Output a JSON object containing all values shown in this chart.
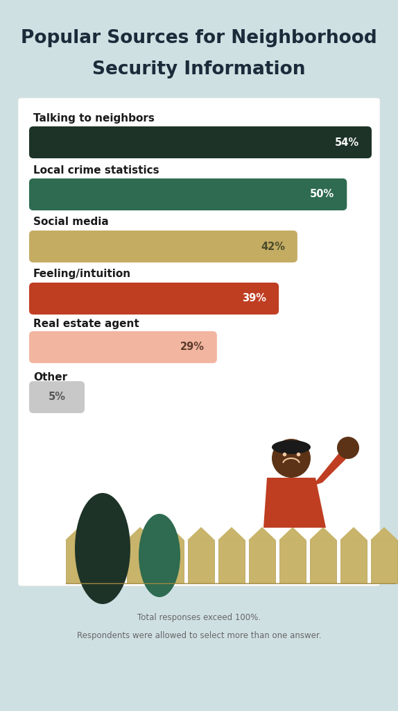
{
  "title_line1": "Popular Sources for Neighborhood",
  "title_line2": "Security Information",
  "title_color": "#1c2b3a",
  "background_color": "#cfe0e3",
  "card_color": "#ffffff",
  "categories": [
    "Talking to neighbors",
    "Local crime statistics",
    "Social media",
    "Feeling/intuition",
    "Real estate agent",
    "Other"
  ],
  "values": [
    54,
    50,
    42,
    39,
    29,
    5
  ],
  "labels": [
    "54%",
    "50%",
    "42%",
    "39%",
    "29%",
    "5%"
  ],
  "bar_colors": [
    "#1e3328",
    "#2e6b50",
    "#c4ac63",
    "#bf3e22",
    "#f2b5a0",
    "#c8c8c8"
  ],
  "label_colors": [
    "#ffffff",
    "#ffffff",
    "#4a4a2a",
    "#ffffff",
    "#5a3a2a",
    "#555555"
  ],
  "bar_max_pct": 54,
  "footnote_line1": "Total responses exceed 100%.",
  "footnote_line2": "Respondents were allowed to select more than one answer.",
  "cat_fontsize": 11,
  "label_fontsize": 10.5,
  "title_fontsize": 19
}
